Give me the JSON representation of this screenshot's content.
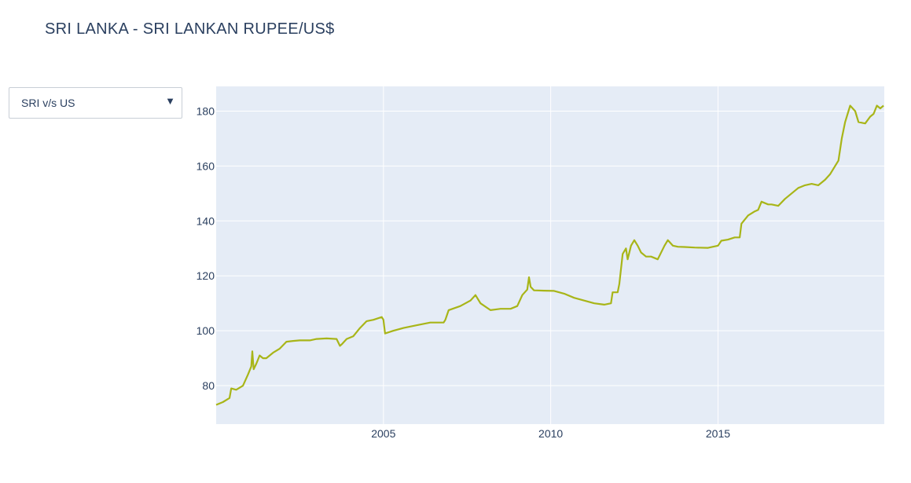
{
  "title": "SRI LANKA - SRI LANKAN RUPEE/US$",
  "dropdown": {
    "selected": "SRI v/s US",
    "arrow_icon": "triangle-down-icon"
  },
  "colors": {
    "plot_bg": "#e5ecf6",
    "grid": "#ffffff",
    "line": "#a8b518",
    "text": "#2a3f5f"
  },
  "chart_data": {
    "type": "line",
    "title": "SRI LANKA - SRI LANKAN RUPEE/US$",
    "xlabel": "",
    "ylabel": "",
    "xlim": [
      2000.0,
      2019.97
    ],
    "ylim": [
      66,
      189
    ],
    "x_ticks": [
      2005,
      2010,
      2015
    ],
    "x_tick_labels": [
      "2005",
      "2010",
      "2015"
    ],
    "y_ticks": [
      80,
      100,
      120,
      140,
      160,
      180
    ],
    "y_tick_labels": [
      "80",
      "100",
      "120",
      "140",
      "160",
      "180"
    ],
    "grid": true,
    "legend": "none",
    "series": [
      {
        "x": [
          2000.0,
          2000.2,
          2000.4,
          2000.45,
          2000.6,
          2000.8,
          2000.95,
          2001.05,
          2001.08,
          2001.12,
          2001.2,
          2001.3,
          2001.4,
          2001.5,
          2001.7,
          2001.9,
          2002.1,
          2002.3,
          2002.5,
          2002.8,
          2003.0,
          2003.3,
          2003.6,
          2003.7,
          2003.75,
          2003.9,
          2004.1,
          2004.3,
          2004.5,
          2004.7,
          2004.95,
          2005.0,
          2005.05,
          2005.3,
          2005.6,
          2006.0,
          2006.4,
          2006.8,
          2006.85,
          2006.95,
          2007.3,
          2007.6,
          2007.75,
          2007.9,
          2008.2,
          2008.5,
          2008.8,
          2009.0,
          2009.15,
          2009.3,
          2009.35,
          2009.4,
          2009.5,
          2009.8,
          2010.1,
          2010.4,
          2010.7,
          2011.0,
          2011.3,
          2011.6,
          2011.8,
          2011.85,
          2012.0,
          2012.05,
          2012.15,
          2012.25,
          2012.3,
          2012.4,
          2012.5,
          2012.6,
          2012.7,
          2012.85,
          2013.0,
          2013.2,
          2013.4,
          2013.5,
          2013.65,
          2013.8,
          2014.0,
          2014.3,
          2014.7,
          2015.0,
          2015.1,
          2015.3,
          2015.5,
          2015.65,
          2015.7,
          2015.9,
          2016.1,
          2016.2,
          2016.3,
          2016.5,
          2016.6,
          2016.8,
          2017.0,
          2017.2,
          2017.4,
          2017.6,
          2017.8,
          2018.0,
          2018.2,
          2018.35,
          2018.5,
          2018.6,
          2018.7,
          2018.8,
          2018.95,
          2019.1,
          2019.2,
          2019.4,
          2019.55,
          2019.65,
          2019.75,
          2019.85,
          2019.95
        ],
        "y": [
          73,
          74,
          75.5,
          79,
          78.5,
          80,
          84,
          87,
          92.5,
          86,
          88,
          91,
          90,
          90,
          92,
          93.5,
          96,
          96.3,
          96.5,
          96.5,
          97,
          97.2,
          97,
          94.5,
          95,
          97,
          98,
          101,
          103.5,
          104,
          105,
          104,
          99,
          100,
          101,
          102,
          103,
          103,
          104,
          107.5,
          109,
          111,
          113,
          110,
          107.5,
          108,
          108,
          109,
          113,
          115,
          119.5,
          116,
          114.7,
          114.6,
          114.5,
          113.5,
          112,
          111,
          110,
          109.5,
          110,
          114,
          114,
          117,
          128,
          130,
          126,
          131,
          133,
          131,
          128.5,
          127,
          127,
          126,
          131,
          133,
          131,
          130.6,
          130.5,
          130.3,
          130.2,
          131,
          132.8,
          133.2,
          134,
          134,
          139,
          142,
          143.5,
          144,
          147,
          146,
          146,
          145.5,
          148,
          150,
          152,
          153,
          153.5,
          153,
          155,
          157,
          160,
          162,
          170,
          176,
          182,
          180,
          176,
          175.5,
          178,
          179,
          182,
          181,
          182
        ]
      }
    ]
  }
}
